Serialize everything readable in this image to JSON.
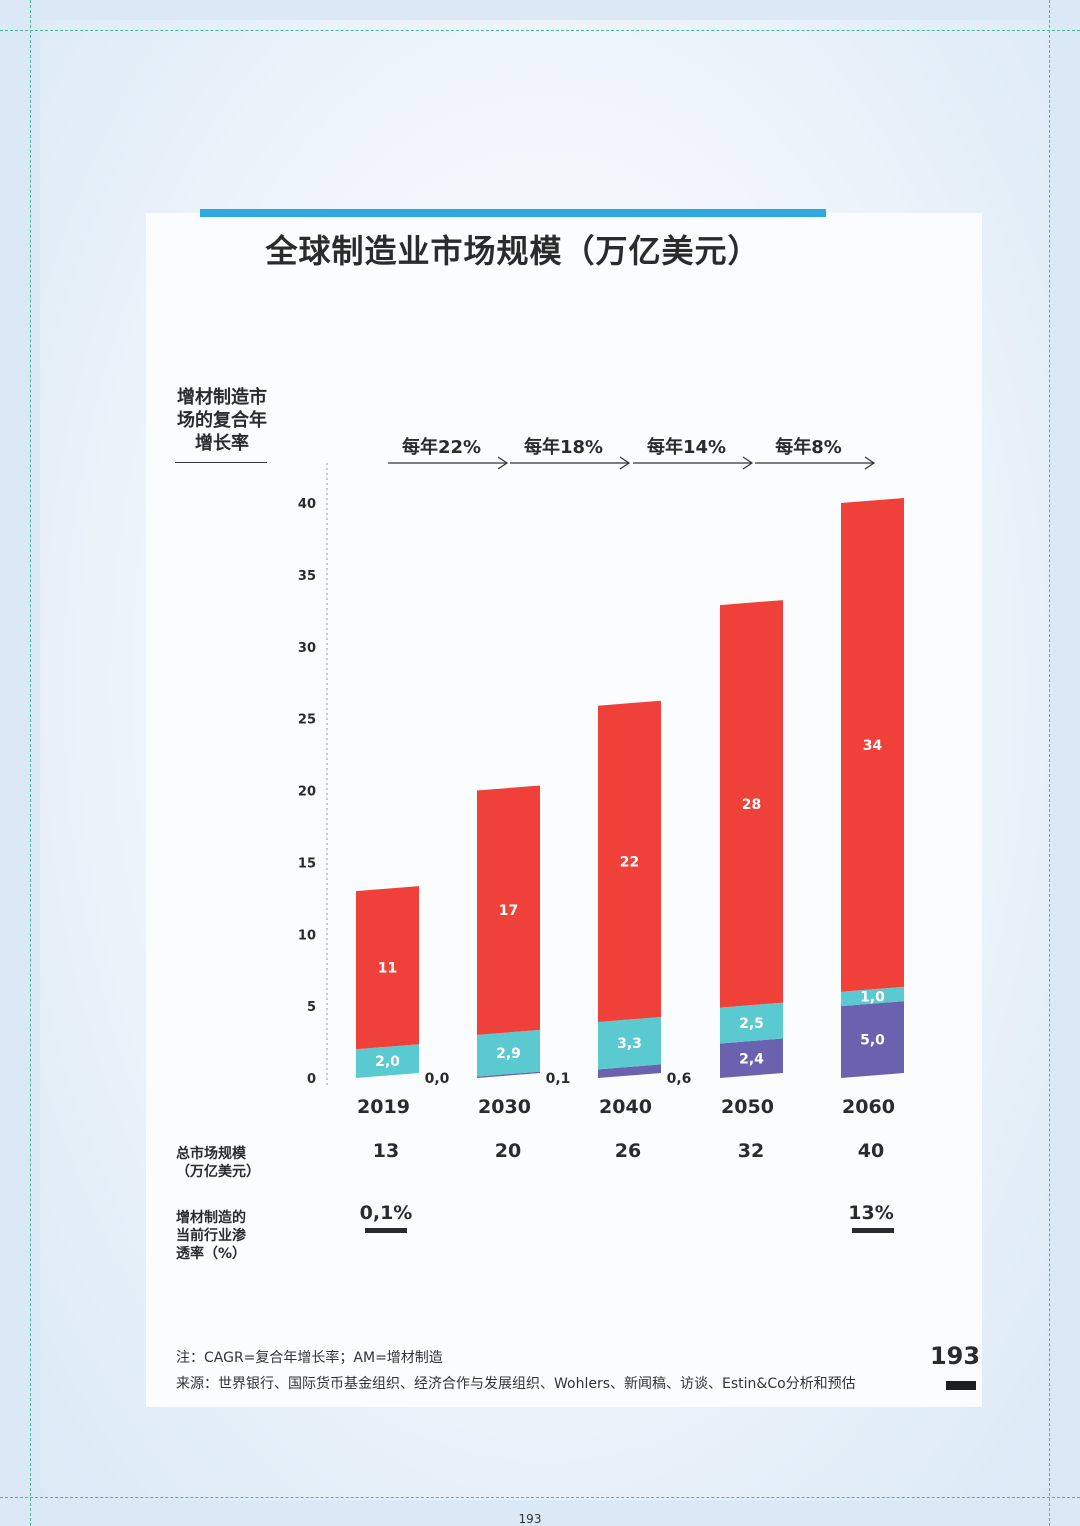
{
  "title": "全球制造业市场规模（万亿美元）",
  "cagr_title": "增材制造市场的复合年增长率",
  "cagr_labels": [
    "每年22%",
    "每年18%",
    "每年14%",
    "每年8%"
  ],
  "row_total_label": "总市场规模（万亿美元）",
  "row_total_values": [
    "13",
    "20",
    "26",
    "32",
    "40"
  ],
  "row_penetration_label": "增材制造的当前行业渗透率（%）",
  "penetration": {
    "2019": "0,1%",
    "2060": "13%"
  },
  "note": "注：CAGR=复合年增长率；AM=增材制造",
  "source": "来源：世界银行、国际货币基金组织、经济合作与发展组织、Wohlers、新闻稿、访谈、Estin&Co分析和预估",
  "page_number": "193",
  "footer_page_number": "193",
  "colors": {
    "red": "#f0403a",
    "teal": "#5bc9d0",
    "purple": "#6a62ae",
    "accent_bar": "#2fa7e0"
  },
  "chart_data": {
    "type": "bar",
    "stacked": true,
    "categories": [
      "2019",
      "2030",
      "2040",
      "2050",
      "2060"
    ],
    "ylim": [
      0,
      40
    ],
    "yticks": [
      "0",
      "5",
      "10",
      "15",
      "20",
      "25",
      "30",
      "35",
      "40"
    ],
    "series": [
      {
        "values": [
          0.0,
          0.1,
          0.6,
          2.4,
          5.0
        ],
        "labels": [
          "0,0",
          "0,1",
          "0,6",
          "2,4",
          "5,0"
        ],
        "color": "#6a62ae"
      },
      {
        "values": [
          2.0,
          2.9,
          3.3,
          2.5,
          1.0
        ],
        "labels": [
          "2,0",
          "2,9",
          "3,3",
          "2,5",
          "1,0"
        ],
        "color": "#5bc9d0"
      },
      {
        "values": [
          11,
          17,
          22,
          28,
          34
        ],
        "labels": [
          "11",
          "17",
          "22",
          "28",
          "34"
        ],
        "color": "#f0403a"
      }
    ]
  }
}
